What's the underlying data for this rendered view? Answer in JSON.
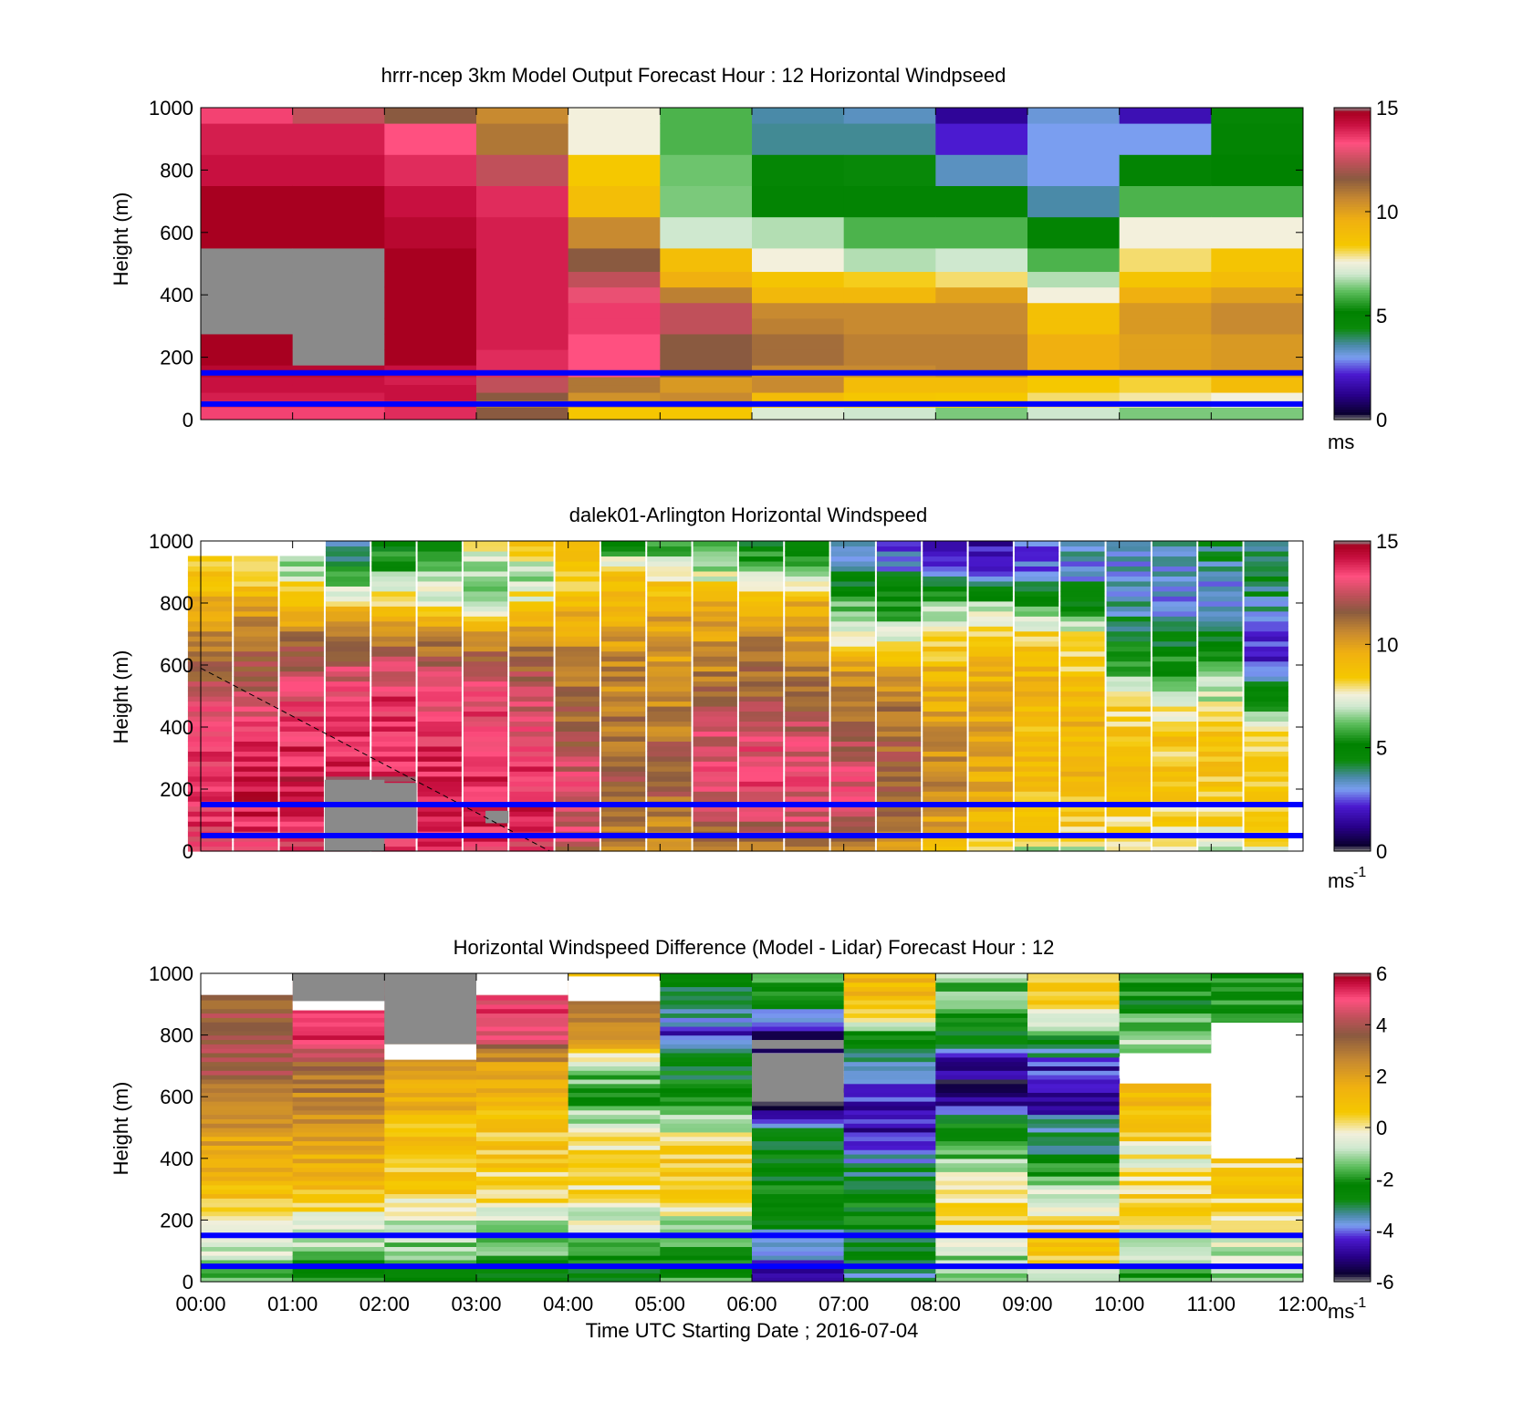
{
  "palette": {
    "speed_stops": [
      [
        0,
        "#8a8a8a"
      ],
      [
        0.3,
        "#0b0030"
      ],
      [
        1.2,
        "#28008a"
      ],
      [
        2.2,
        "#4b1ad0"
      ],
      [
        3.0,
        "#7a9ef0"
      ],
      [
        3.6,
        "#4a8aa8"
      ],
      [
        4.4,
        "#0a8a0a"
      ],
      [
        5.2,
        "#008200"
      ],
      [
        6.2,
        "#5fbf5f"
      ],
      [
        7.0,
        "#cfe8cf"
      ],
      [
        7.6,
        "#f3f0dc"
      ],
      [
        8.4,
        "#f5c800"
      ],
      [
        9.6,
        "#f0b010"
      ],
      [
        10.6,
        "#c88a30"
      ],
      [
        11.6,
        "#8a5a40"
      ],
      [
        12.4,
        "#c0505a"
      ],
      [
        13.3,
        "#ff5080"
      ],
      [
        14.2,
        "#c81040"
      ],
      [
        14.8,
        "#a80020"
      ],
      [
        15,
        "#8a8a8a"
      ]
    ],
    "diff_stops": [
      [
        -6,
        "#8a8a8a"
      ],
      [
        -5.7,
        "#0b0030"
      ],
      [
        -5.0,
        "#28008a"
      ],
      [
        -4.3,
        "#4b1ad0"
      ],
      [
        -3.8,
        "#7a9ef0"
      ],
      [
        -3.4,
        "#4a8aa8"
      ],
      [
        -2.8,
        "#0a8a0a"
      ],
      [
        -2.2,
        "#008200"
      ],
      [
        -1.5,
        "#5fbf5f"
      ],
      [
        -0.8,
        "#cfe8cf"
      ],
      [
        -0.2,
        "#f3f0dc"
      ],
      [
        0.6,
        "#f5c800"
      ],
      [
        1.6,
        "#f0b010"
      ],
      [
        2.6,
        "#c88a30"
      ],
      [
        3.6,
        "#8a5a40"
      ],
      [
        4.3,
        "#c0505a"
      ],
      [
        5.0,
        "#ff5080"
      ],
      [
        5.6,
        "#c81040"
      ],
      [
        5.9,
        "#a80020"
      ],
      [
        6,
        "#8a8a8a"
      ]
    ],
    "reference_line": "#0000ff"
  },
  "chart_data": [
    {
      "type": "heatmap",
      "title": "hrrr-ncep 3km Model Output   Forecast Hour : 12 Horizontal Windpseed",
      "ylabel": "Height (m)",
      "xlabel": "",
      "xlim": [
        0,
        12
      ],
      "ylim": [
        0,
        1000
      ],
      "ytick_labels": [
        "0",
        "200",
        "400",
        "600",
        "800",
        "1000"
      ],
      "xtick_labels": [],
      "colorbar": {
        "range": [
          0,
          15
        ],
        "tick_labels": [
          "0",
          "5",
          "10",
          "15"
        ],
        "unit": "ms"
      },
      "reference_heights_m": [
        150,
        50
      ],
      "hours": [
        0,
        1,
        2,
        3,
        4,
        5,
        6,
        7,
        8,
        9,
        10,
        11
      ],
      "levels_m": [
        10,
        30,
        50,
        75,
        100,
        125,
        150,
        200,
        250,
        300,
        350,
        400,
        450,
        500,
        600,
        700,
        800,
        900,
        1000
      ],
      "columns": [
        [
          13.5,
          13.5,
          13.8,
          14.0,
          14.2,
          14.2,
          14.5,
          14.8,
          14.8,
          null,
          null,
          null,
          null,
          null,
          14.8,
          14.8,
          14.2,
          14.0,
          13.5
        ],
        [
          13.5,
          13.5,
          13.8,
          14.0,
          14.2,
          14.2,
          14.5,
          null,
          null,
          null,
          null,
          null,
          null,
          null,
          14.8,
          14.8,
          14.2,
          14.0,
          12.4
        ],
        [
          13.8,
          13.8,
          14.0,
          14.2,
          14.2,
          14.0,
          14.2,
          14.8,
          14.8,
          14.8,
          14.8,
          14.8,
          14.8,
          14.8,
          14.5,
          14.2,
          13.8,
          13.3,
          11.6
        ],
        [
          11.6,
          11.6,
          11.0,
          11.6,
          12.4,
          12.4,
          13.8,
          13.8,
          14.0,
          14.0,
          14.0,
          14.0,
          14.0,
          14.0,
          14.0,
          13.8,
          12.4,
          11.0,
          10.6
        ],
        [
          8.5,
          8.5,
          10.6,
          10.4,
          11.0,
          11.0,
          13.3,
          13.3,
          13.3,
          13.6,
          13.6,
          13.0,
          12.4,
          11.6,
          10.6,
          8.9,
          8.4,
          7.6,
          7.6
        ],
        [
          8.5,
          8.5,
          10.6,
          10.6,
          10.2,
          10.2,
          11.6,
          11.6,
          11.6,
          12.4,
          12.4,
          10.8,
          9.6,
          8.9,
          7.0,
          6.4,
          6.3,
          6.0,
          6.0
        ],
        [
          7.2,
          7.2,
          9.0,
          9.0,
          10.6,
          10.6,
          10.6,
          11.2,
          11.2,
          10.8,
          10.6,
          9.2,
          8.6,
          7.6,
          6.8,
          5.0,
          4.8,
          3.7,
          3.6
        ],
        [
          7.0,
          7.0,
          8.5,
          8.5,
          9.0,
          9.0,
          10.6,
          10.8,
          10.8,
          10.6,
          10.6,
          9.2,
          8.3,
          6.8,
          6.0,
          5.0,
          4.6,
          3.7,
          3.4
        ],
        [
          6.4,
          6.4,
          8.4,
          8.4,
          9.0,
          9.0,
          10.8,
          10.8,
          10.8,
          10.6,
          10.6,
          10.0,
          8.0,
          7.0,
          6.0,
          5.0,
          3.4,
          2.2,
          1.4
        ],
        [
          7.0,
          7.0,
          8.0,
          8.0,
          8.4,
          8.4,
          9.6,
          9.6,
          9.6,
          8.8,
          8.8,
          7.6,
          6.8,
          6.0,
          5.0,
          3.6,
          3.0,
          3.0,
          3.2
        ],
        [
          6.4,
          6.4,
          7.8,
          7.8,
          8.2,
          8.2,
          10.0,
          10.0,
          10.0,
          10.2,
          10.2,
          9.6,
          8.6,
          8.0,
          7.6,
          6.0,
          5.0,
          3.0,
          1.8
        ],
        [
          6.4,
          6.4,
          7.6,
          7.6,
          9.0,
          9.0,
          10.2,
          10.2,
          10.2,
          10.6,
          10.6,
          10.0,
          9.0,
          8.6,
          7.6,
          6.0,
          5.2,
          5.0,
          4.8
        ]
      ]
    },
    {
      "type": "heatmap",
      "title": "dalek01-Arlington  Horizontal Windspeed",
      "ylabel": "Height (m)",
      "xlabel": "",
      "xlim": [
        0,
        12
      ],
      "ylim": [
        0,
        1000
      ],
      "ytick_labels": [
        "0",
        "200",
        "400",
        "600",
        "800",
        "1000"
      ],
      "xtick_labels": [],
      "colorbar": {
        "range": [
          0,
          15
        ],
        "tick_labels": [
          "0",
          "5",
          "10",
          "15"
        ],
        "unit": "ms",
        "unit_superscript": "-1"
      },
      "reference_heights_m": [
        150,
        50
      ],
      "dashed_line": {
        "x": [
          0,
          3.8
        ],
        "y": [
          590,
          0
        ]
      },
      "missing_patches": [
        {
          "x": [
            1.35,
            2.0
          ],
          "y": [
            0,
            230
          ]
        },
        {
          "x": [
            1.5,
            2.35
          ],
          "y": [
            40,
            220
          ]
        },
        {
          "x": [
            3.1,
            3.35
          ],
          "y": [
            90,
            130
          ]
        }
      ],
      "profile_hours": [
        0.1,
        0.6,
        1.1,
        1.6,
        2.1,
        2.6,
        3.1,
        3.6,
        4.1,
        4.6,
        5.1,
        5.6,
        6.1,
        6.6,
        7.1,
        7.6,
        8.1,
        8.6,
        9.1,
        9.6,
        10.1,
        10.6,
        11.1,
        11.6
      ],
      "profile_levels_m": [
        0,
        100,
        200,
        300,
        400,
        500,
        600,
        700,
        800,
        900,
        1000
      ],
      "profiles": [
        [
          13.0,
          13.5,
          14.0,
          13.5,
          13.3,
          12.4,
          11.6,
          10.8,
          9.6,
          8.6,
          null
        ],
        [
          13.3,
          13.8,
          14.2,
          13.8,
          13.3,
          12.8,
          11.6,
          11.0,
          9.6,
          8.0,
          null
        ],
        [
          13.3,
          13.8,
          14.2,
          14.0,
          13.5,
          13.0,
          12.0,
          11.0,
          9.0,
          7.0,
          null
        ],
        [
          13.5,
          14.0,
          14.2,
          14.0,
          13.6,
          13.3,
          12.4,
          11.0,
          8.6,
          5.4,
          3.0
        ],
        [
          13.3,
          14.0,
          14.2,
          14.0,
          13.8,
          13.6,
          12.4,
          10.6,
          8.4,
          6.2,
          4.5
        ],
        [
          13.3,
          14.0,
          14.0,
          13.8,
          13.6,
          13.3,
          12.0,
          10.6,
          7.8,
          6.4,
          5.0
        ],
        [
          13.5,
          14.0,
          14.0,
          13.8,
          13.5,
          13.0,
          11.8,
          10.0,
          7.0,
          6.4,
          8.0
        ],
        [
          13.3,
          13.8,
          13.8,
          13.5,
          13.0,
          12.4,
          11.6,
          10.0,
          8.0,
          6.6,
          9.0
        ],
        [
          12.0,
          12.8,
          13.0,
          12.4,
          11.6,
          11.2,
          11.0,
          10.0,
          9.0,
          8.0,
          9.6
        ],
        [
          10.6,
          11.0,
          11.6,
          11.6,
          11.0,
          10.6,
          10.6,
          10.0,
          9.0,
          8.6,
          5.0
        ],
        [
          9.8,
          10.6,
          11.6,
          11.6,
          11.0,
          10.6,
          10.2,
          10.0,
          9.6,
          8.0,
          5.0
        ],
        [
          10.4,
          12.0,
          13.0,
          13.0,
          12.4,
          11.6,
          10.6,
          10.0,
          9.6,
          7.0,
          5.5
        ],
        [
          11.0,
          12.4,
          13.3,
          13.3,
          12.4,
          11.6,
          11.0,
          10.4,
          9.6,
          6.4,
          4.6
        ],
        [
          11.2,
          12.4,
          13.0,
          13.0,
          12.4,
          11.6,
          10.6,
          10.0,
          9.6,
          6.0,
          4.4
        ],
        [
          10.8,
          12.0,
          12.8,
          12.4,
          11.6,
          11.0,
          10.0,
          7.0,
          6.0,
          4.0,
          3.0
        ],
        [
          10.0,
          11.2,
          11.6,
          11.6,
          11.2,
          10.6,
          9.6,
          7.0,
          5.6,
          3.4,
          2.4
        ],
        [
          8.6,
          10.0,
          10.6,
          10.6,
          10.0,
          9.6,
          9.2,
          7.6,
          6.4,
          3.0,
          2.0
        ],
        [
          8.4,
          9.2,
          9.6,
          10.0,
          9.8,
          9.6,
          9.2,
          8.0,
          6.4,
          2.4,
          1.6
        ],
        [
          7.0,
          8.4,
          9.0,
          9.2,
          9.0,
          9.2,
          9.0,
          8.2,
          5.4,
          2.8,
          2.2
        ],
        [
          7.0,
          8.6,
          9.0,
          9.2,
          9.2,
          9.0,
          8.6,
          7.6,
          5.0,
          3.0,
          4.0
        ],
        [
          7.6,
          8.4,
          8.6,
          8.8,
          8.6,
          8.0,
          5.4,
          4.6,
          3.4,
          3.0,
          3.4
        ],
        [
          7.0,
          8.4,
          8.6,
          8.6,
          8.6,
          7.0,
          5.4,
          4.0,
          3.2,
          3.0,
          3.6
        ],
        [
          7.0,
          8.2,
          8.6,
          8.6,
          8.4,
          7.0,
          6.0,
          4.4,
          3.0,
          3.4,
          4.4
        ],
        [
          7.6,
          8.4,
          8.6,
          8.4,
          7.6,
          5.0,
          2.2,
          2.4,
          3.6,
          4.6,
          3.8
        ]
      ]
    },
    {
      "type": "heatmap",
      "title": "Horizontal Windspeed Difference (Model - Lidar) Forecast Hour : 12",
      "ylabel": "Height (m)",
      "xlabel": "Time UTC  Starting Date ; 2016-07-04",
      "xlim": [
        0,
        12
      ],
      "ylim": [
        0,
        1000
      ],
      "ytick_labels": [
        "0",
        "200",
        "400",
        "600",
        "800",
        "1000"
      ],
      "xtick_labels": [
        "00:00",
        "01:00",
        "02:00",
        "03:00",
        "04:00",
        "05:00",
        "06:00",
        "07:00",
        "08:00",
        "09:00",
        "10:00",
        "11:00",
        "12:00"
      ],
      "colorbar": {
        "range": [
          -6,
          6
        ],
        "tick_labels": [
          "-6",
          "-4",
          "-2",
          "0",
          "2",
          "4",
          "6"
        ],
        "unit": "ms",
        "unit_superscript": "-1"
      },
      "reference_heights_m": [
        150,
        50
      ],
      "missing_patches": [
        {
          "x": [
            1.0,
            2.0
          ],
          "y": [
            900,
            1000
          ]
        },
        {
          "x": [
            2.0,
            3.0
          ],
          "y": [
            770,
            1000
          ]
        },
        {
          "x": [
            6.0,
            7.0
          ],
          "y": [
            590,
            740
          ]
        }
      ],
      "blank_patches": [
        {
          "x": [
            0,
            1.0
          ],
          "y": [
            930,
            1000
          ]
        },
        {
          "x": [
            1.0,
            2.0
          ],
          "y": [
            880,
            910
          ]
        },
        {
          "x": [
            2.0,
            3.0
          ],
          "y": [
            720,
            770
          ]
        },
        {
          "x": [
            3.0,
            4.0
          ],
          "y": [
            930,
            1000
          ]
        },
        {
          "x": [
            4.0,
            5.0
          ],
          "y": [
            910,
            990
          ]
        },
        {
          "x": [
            10.0,
            11.0
          ],
          "y": [
            660,
            730
          ]
        },
        {
          "x": [
            11.0,
            12.0
          ],
          "y": [
            400,
            840
          ]
        }
      ],
      "hours": [
        0,
        1,
        2,
        3,
        4,
        5,
        6,
        7,
        8,
        9,
        10,
        11
      ],
      "levels_m": [
        0,
        100,
        200,
        300,
        400,
        500,
        600,
        700,
        800,
        900,
        1000
      ],
      "columns": [
        [
          -1.5,
          -0.6,
          0.3,
          1.0,
          1.4,
          2.2,
          3.0,
          3.8,
          4.2,
          3.6,
          3.2
        ],
        [
          -2.6,
          -1.2,
          -0.3,
          1.0,
          1.6,
          2.0,
          2.6,
          3.4,
          5.2,
          5.6,
          3.8
        ],
        [
          -2.4,
          -1.4,
          -0.6,
          0.6,
          0.8,
          1.0,
          1.6,
          2.0,
          2.6,
          3.2,
          3.6
        ],
        [
          -2.6,
          -1.6,
          -0.6,
          0.4,
          0.6,
          0.8,
          1.2,
          1.8,
          4.8,
          5.0,
          4.0
        ],
        [
          -2.8,
          -1.6,
          -0.6,
          0.3,
          0.6,
          -0.6,
          -2.0,
          -1.0,
          2.4,
          2.8,
          1.2
        ],
        [
          -1.8,
          -2.2,
          -0.8,
          0.6,
          0.8,
          -0.8,
          -2.4,
          -2.6,
          -4.4,
          -3.0,
          -2.4
        ],
        [
          -5.0,
          -3.8,
          -2.6,
          -2.4,
          -2.6,
          -3.6,
          -5.8,
          null,
          -5.6,
          -2.6,
          -1.6
        ],
        [
          -3.4,
          -3.0,
          -2.4,
          -2.4,
          -3.6,
          -4.8,
          -4.4,
          -3.8,
          -2.2,
          1.0,
          1.4
        ],
        [
          -1.8,
          -1.2,
          0.4,
          0.4,
          -1.4,
          -2.4,
          -5.4,
          -5.0,
          -2.6,
          -1.6,
          -1.2
        ],
        [
          -1.0,
          1.2,
          0.4,
          -1.0,
          -2.6,
          -3.4,
          -5.0,
          -4.4,
          -2.2,
          0.6,
          1.0
        ],
        [
          -2.0,
          -0.8,
          -0.2,
          0.6,
          -0.3,
          0.6,
          1.2,
          null,
          -1.0,
          -2.4,
          -2.0
        ],
        [
          -1.4,
          -0.6,
          0.0,
          0.6,
          0.4,
          null,
          null,
          null,
          -2.4,
          -2.2,
          -2.0
        ]
      ]
    }
  ]
}
